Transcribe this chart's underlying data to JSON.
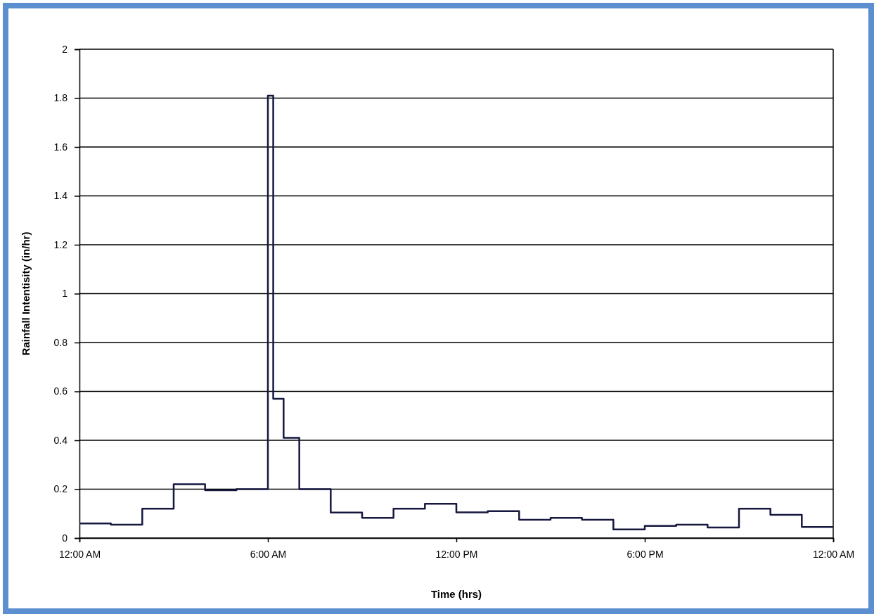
{
  "chart_data": {
    "type": "step",
    "xlabel": "Time (hrs)",
    "ylabel": "Rainfall Intentisity (in/hr)",
    "x": [
      0,
      1,
      2,
      3,
      4,
      5,
      6,
      6.17,
      6.5,
      7,
      8,
      9,
      10,
      11,
      12,
      13,
      14,
      15,
      16,
      17,
      18,
      19,
      20,
      21,
      22,
      23,
      24
    ],
    "series": [
      {
        "color": "#15173f",
        "values": [
          0.06,
          0.055,
          0.12,
          0.22,
          0.196,
          0.2,
          1.81,
          0.57,
          0.41,
          0.2,
          0.104,
          0.083,
          0.12,
          0.14,
          0.105,
          0.11,
          0.075,
          0.083,
          0.075,
          0.035,
          0.05,
          0.055,
          0.043,
          0.12,
          0.095,
          0.045,
          0.045
        ]
      }
    ],
    "xlim": [
      0,
      24
    ],
    "xticks": [
      {
        "value": 0,
        "label": "12:00 AM"
      },
      {
        "value": 6,
        "label": "6:00 AM"
      },
      {
        "value": 12,
        "label": "12:00 PM"
      },
      {
        "value": 18,
        "label": "6:00 PM"
      },
      {
        "value": 24,
        "label": "12:00 AM"
      }
    ],
    "ylim": [
      0,
      2
    ],
    "yticks": [
      0,
      0.2,
      0.4,
      0.6,
      0.8,
      1,
      1.2,
      1.4,
      1.6,
      1.8,
      2
    ],
    "grid": "y",
    "marker": "none",
    "line_style": "solid"
  }
}
